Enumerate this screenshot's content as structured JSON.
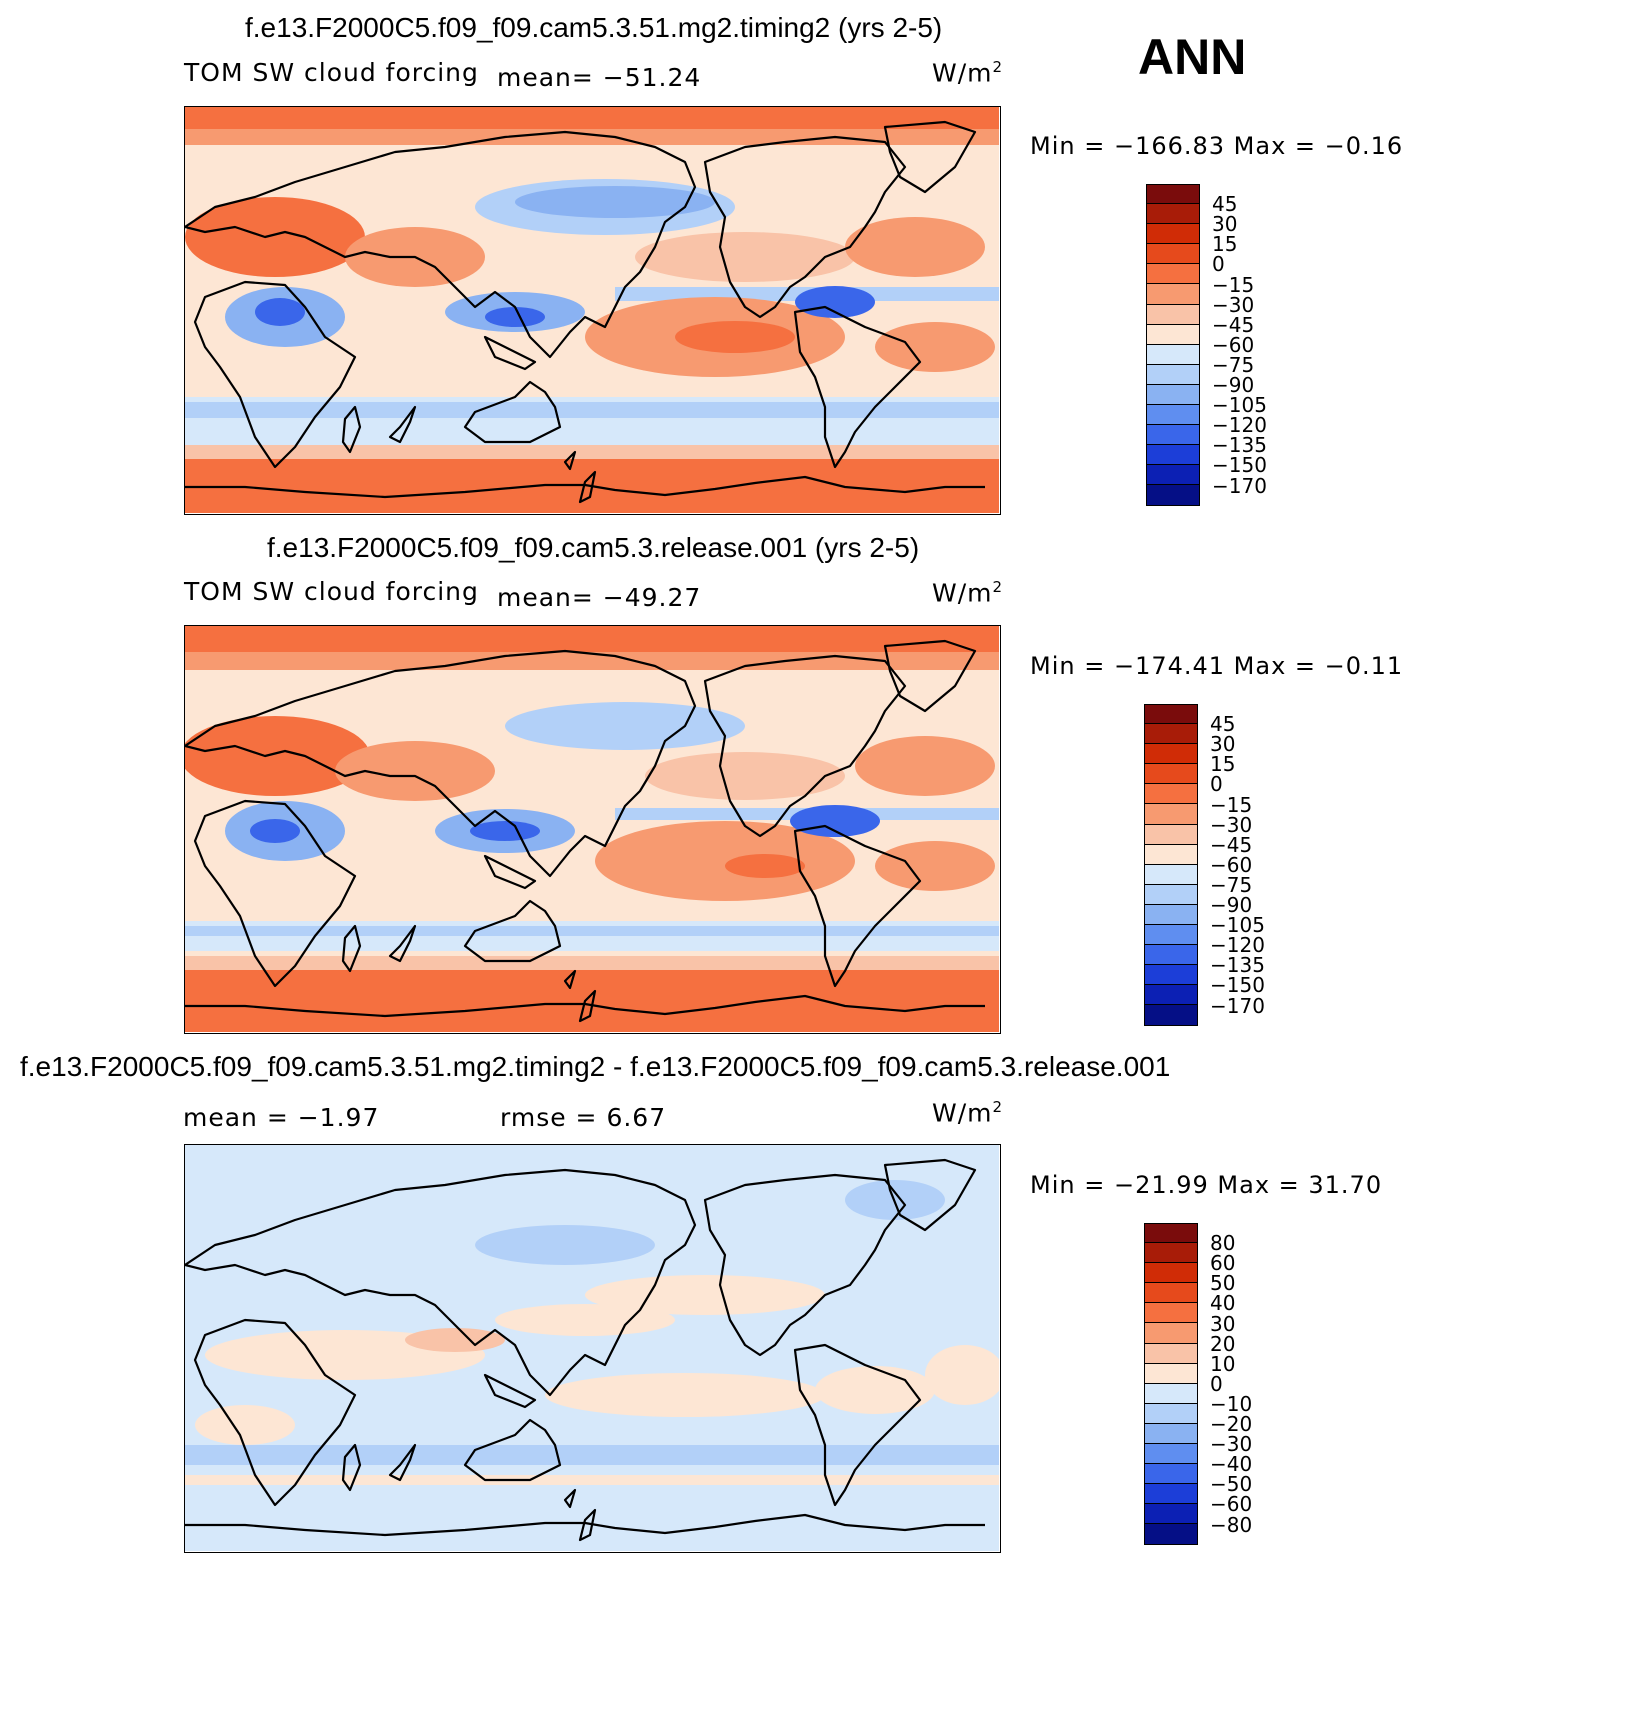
{
  "annotation": "ANN",
  "units_label": "W/m",
  "units_exp": "2",
  "panels": [
    {
      "title": "f.e13.F2000C5.f09_f09.cam5.3.51.mg2.timing2 (yrs 2-5)",
      "variable": "TOM SW cloud forcing",
      "mean_text": "mean=  −51.24",
      "minmax": "Min  =  −166.83  Max  =    −0.16",
      "colorbar": {
        "labels": [
          "45",
          "30",
          "15",
          "0",
          "−15",
          "−30",
          "−45",
          "−60",
          "−75",
          "−90",
          "−105",
          "−120",
          "−135",
          "−150",
          "−170"
        ],
        "colors": [
          "#7a0c0c",
          "#a81c08",
          "#d02c06",
          "#e64a1c",
          "#f57040",
          "#f79a70",
          "#f9c3a8",
          "#fde6d4",
          "#d6e8fa",
          "#b2d0f8",
          "#8ab2f2",
          "#5f8ef0",
          "#3a66ea",
          "#1c3ed8",
          "#0c20b4",
          "#050f86"
        ]
      }
    },
    {
      "title": "f.e13.F2000C5.f09_f09.cam5.3.release.001 (yrs 2-5)",
      "variable": "TOM SW cloud forcing",
      "mean_text": "mean=  −49.27",
      "minmax": "Min  =  −174.41  Max  =    −0.11",
      "colorbar": {
        "labels": [
          "45",
          "30",
          "15",
          "0",
          "−15",
          "−30",
          "−45",
          "−60",
          "−75",
          "−90",
          "−105",
          "−120",
          "−135",
          "−150",
          "−170"
        ],
        "colors": [
          "#7a0c0c",
          "#a81c08",
          "#d02c06",
          "#e64a1c",
          "#f57040",
          "#f79a70",
          "#f9c3a8",
          "#fde6d4",
          "#d6e8fa",
          "#b2d0f8",
          "#8ab2f2",
          "#5f8ef0",
          "#3a66ea",
          "#1c3ed8",
          "#0c20b4",
          "#050f86"
        ]
      }
    },
    {
      "title": "f.e13.F2000C5.f09_f09.cam5.3.51.mg2.timing2 - f.e13.F2000C5.f09_f09.cam5.3.release.001",
      "mean_text": "mean  =    −1.97",
      "rmse_text": "rmse  =      6.67",
      "minmax": "Min  =  −21.99  Max  =    31.70",
      "colorbar": {
        "labels": [
          "80",
          "60",
          "50",
          "40",
          "30",
          "20",
          "10",
          "0",
          "−10",
          "−20",
          "−30",
          "−40",
          "−50",
          "−60",
          "−80"
        ],
        "colors": [
          "#7a0c0c",
          "#a81c08",
          "#d02c06",
          "#e64a1c",
          "#f57040",
          "#f79a70",
          "#f9c3a8",
          "#fde6d4",
          "#d6e8fa",
          "#b2d0f8",
          "#8ab2f2",
          "#5f8ef0",
          "#3a66ea",
          "#1c3ed8",
          "#0c20b4",
          "#050f86"
        ]
      }
    }
  ]
}
